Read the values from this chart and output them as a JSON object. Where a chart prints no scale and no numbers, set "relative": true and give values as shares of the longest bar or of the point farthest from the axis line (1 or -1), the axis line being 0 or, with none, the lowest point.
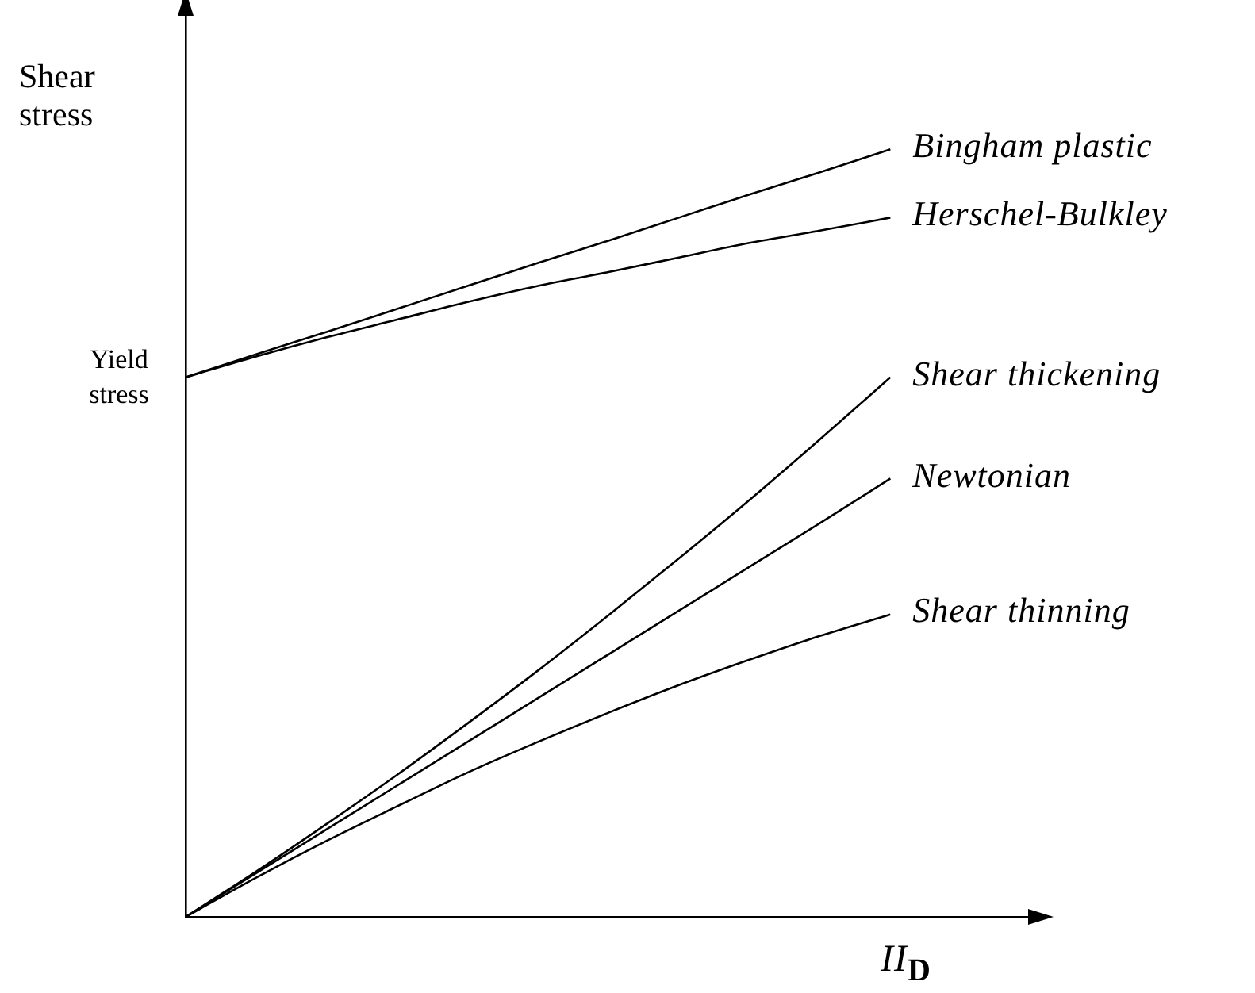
{
  "chart_data": {
    "type": "line",
    "relative": true,
    "ylabel": "Shear stress",
    "xlabel": "II$_{D}$",
    "tick_labels": false,
    "marker": "none",
    "categories": [
      null,
      null,
      null,
      null,
      null,
      null,
      null,
      null,
      null,
      null,
      null,
      null,
      null
    ],
    "annotations": [
      "Yield stress"
    ],
    "series": [
      {
        "name": "Bingham plastic",
        "color": "#000000",
        "values": [
          0.703,
          0.733,
          0.762,
          0.792,
          0.822,
          0.852,
          0.881,
          0.911,
          0.941,
          0.97,
          1,
          null,
          null
        ]
      },
      {
        "name": "Herschel-Bulkley",
        "color": "#000000",
        "values": [
          0.703,
          0.73,
          0.755,
          0.778,
          0.801,
          0.822,
          0.84,
          0.859,
          0.878,
          0.894,
          0.911,
          null,
          null
        ]
      },
      {
        "name": "Shear thickening",
        "color": "#000000",
        "values": [
          0,
          0.059,
          0.121,
          0.185,
          0.252,
          0.321,
          0.393,
          0.467,
          0.543,
          0.622,
          0.703,
          null,
          null
        ]
      },
      {
        "name": "Newtonian",
        "color": "#000000",
        "values": [
          0,
          0.057,
          0.114,
          0.171,
          0.228,
          0.285,
          0.342,
          0.399,
          0.456,
          0.513,
          0.571,
          null,
          null
        ]
      },
      {
        "name": "Shear thinning",
        "color": "#000000",
        "values": [
          0,
          0.051,
          0.099,
          0.144,
          0.188,
          0.228,
          0.266,
          0.302,
          0.335,
          0.366,
          0.394,
          null,
          null
        ]
      }
    ]
  }
}
